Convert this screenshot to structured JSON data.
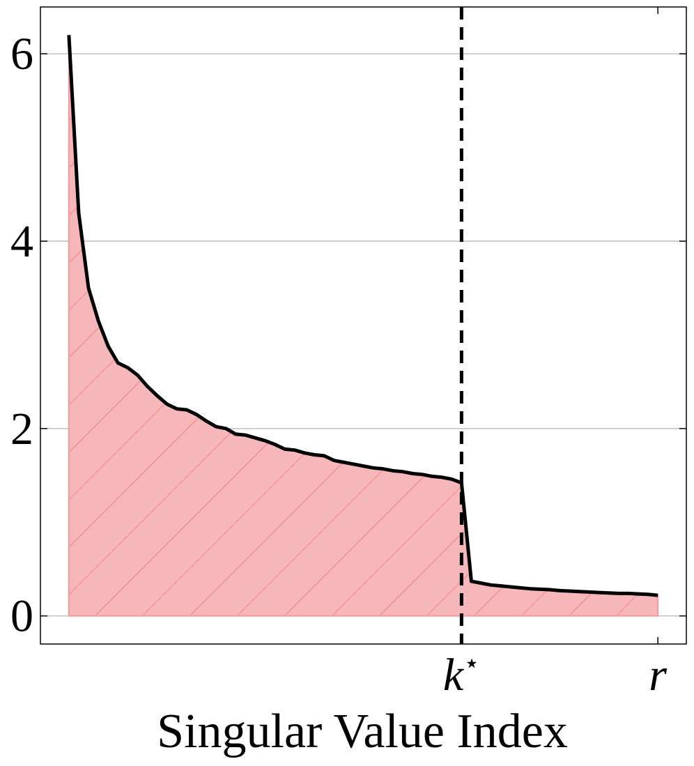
{
  "chart_data": {
    "type": "area",
    "title": "",
    "xlabel": "Singular Value Index",
    "ylabel": "",
    "ylim": [
      -0.3,
      6.5
    ],
    "xlim": [
      -2.9,
      62.9
    ],
    "y_ticks": [
      0,
      2,
      4,
      6
    ],
    "y_tick_labels": [
      "0",
      "2",
      "4",
      "6"
    ],
    "x_tick_labels": [
      {
        "label": "k",
        "sup": "⋆",
        "at": 40
      },
      {
        "label": "r",
        "sup": "",
        "at": 60
      }
    ],
    "grid": "horizontal",
    "cutoff_index": 40,
    "colors": {
      "line": "#000000",
      "fill": "#f5b7b9",
      "hatch": "#f59a9c",
      "grid": "#b0b0b0"
    },
    "x": [
      0,
      1,
      2,
      3,
      4,
      5,
      6,
      7,
      8,
      9,
      10,
      11,
      12,
      13,
      14,
      15,
      16,
      17,
      18,
      19,
      20,
      21,
      22,
      23,
      24,
      25,
      26,
      27,
      28,
      29,
      30,
      31,
      32,
      33,
      34,
      35,
      36,
      37,
      38,
      39,
      40,
      41,
      42,
      43,
      44,
      45,
      46,
      47,
      48,
      49,
      50,
      51,
      52,
      53,
      54,
      55,
      56,
      57,
      58,
      59,
      60
    ],
    "values": [
      6.2,
      4.3,
      3.5,
      3.15,
      2.88,
      2.7,
      2.65,
      2.57,
      2.45,
      2.35,
      2.26,
      2.21,
      2.2,
      2.15,
      2.08,
      2.02,
      2.0,
      1.94,
      1.93,
      1.9,
      1.87,
      1.83,
      1.78,
      1.77,
      1.74,
      1.72,
      1.71,
      1.66,
      1.64,
      1.62,
      1.6,
      1.58,
      1.57,
      1.55,
      1.54,
      1.52,
      1.51,
      1.49,
      1.48,
      1.46,
      1.42,
      0.37,
      0.35,
      0.33,
      0.32,
      0.31,
      0.3,
      0.29,
      0.285,
      0.28,
      0.27,
      0.265,
      0.26,
      0.255,
      0.25,
      0.245,
      0.24,
      0.24,
      0.235,
      0.23,
      0.22
    ]
  }
}
